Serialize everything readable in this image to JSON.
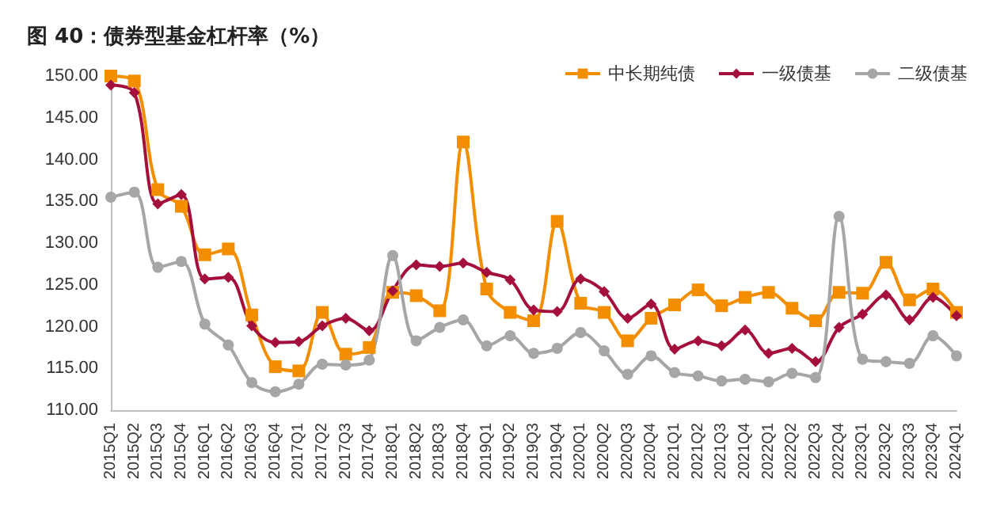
{
  "chart_data": {
    "type": "line",
    "title": "图 40：债券型基金杠杆率（%）",
    "categories": [
      "2015Q1",
      "2015Q2",
      "2015Q3",
      "2015Q4",
      "2016Q1",
      "2016Q2",
      "2016Q3",
      "2016Q4",
      "2017Q1",
      "2017Q2",
      "2017Q3",
      "2017Q4",
      "2018Q1",
      "2018Q2",
      "2018Q3",
      "2018Q4",
      "2019Q1",
      "2019Q2",
      "2019Q3",
      "2019Q4",
      "2020Q1",
      "2020Q2",
      "2020Q3",
      "2020Q4",
      "2021Q1",
      "2021Q2",
      "2021Q3",
      "2021Q4",
      "2022Q1",
      "2022Q2",
      "2022Q3",
      "2022Q4",
      "2023Q1",
      "2023Q2",
      "2023Q3",
      "2023Q4",
      "2024Q1"
    ],
    "series": [
      {
        "name": "中长期纯债",
        "color": "#f28e00",
        "marker": "square",
        "values": [
          150.0,
          149.4,
          136.4,
          134.4,
          128.6,
          129.3,
          121.4,
          115.2,
          114.7,
          121.7,
          116.7,
          117.5,
          124.1,
          123.7,
          121.9,
          142.1,
          124.5,
          121.7,
          120.7,
          132.6,
          122.8,
          121.7,
          118.3,
          121.0,
          122.6,
          124.4,
          122.5,
          123.5,
          124.1,
          122.2,
          120.7,
          124.1,
          124.0,
          127.7,
          123.2,
          124.5,
          121.7
        ]
      },
      {
        "name": "一级债基",
        "color": "#a50f3c",
        "marker": "diamond",
        "values": [
          148.9,
          148.0,
          134.7,
          135.8,
          125.7,
          125.9,
          120.1,
          118.1,
          118.2,
          120.1,
          121.0,
          119.5,
          124.3,
          127.4,
          127.2,
          127.6,
          126.5,
          125.6,
          122.0,
          121.8,
          125.7,
          124.2,
          121.0,
          122.7,
          117.3,
          118.3,
          117.7,
          119.6,
          116.8,
          117.4,
          115.8,
          119.9,
          121.5,
          123.8,
          120.8,
          123.5,
          121.3
        ]
      },
      {
        "name": "二级债基",
        "color": "#a6a6a6",
        "marker": "circle",
        "values": [
          135.5,
          136.1,
          127.1,
          127.8,
          120.3,
          117.8,
          113.3,
          112.2,
          113.1,
          115.5,
          115.4,
          116.0,
          128.5,
          118.3,
          119.9,
          120.8,
          117.7,
          118.9,
          116.8,
          117.4,
          119.3,
          117.1,
          114.3,
          116.5,
          114.5,
          114.1,
          113.5,
          113.7,
          113.4,
          114.4,
          113.9,
          133.2,
          116.1,
          115.8,
          115.6,
          118.9,
          116.5
        ]
      }
    ],
    "ylim": [
      110,
      150
    ],
    "yticks": [
      {
        "value": 110,
        "label": "110.00"
      },
      {
        "value": 115,
        "label": "115.00"
      },
      {
        "value": 120,
        "label": "120.00"
      },
      {
        "value": 125,
        "label": "125.00"
      },
      {
        "value": 130,
        "label": "130.00"
      },
      {
        "value": 135,
        "label": "135.00"
      },
      {
        "value": 140,
        "label": "140.00"
      },
      {
        "value": 145,
        "label": "145.00"
      },
      {
        "value": 150,
        "label": "150.00"
      }
    ],
    "grid": false,
    "legend": "top right"
  }
}
